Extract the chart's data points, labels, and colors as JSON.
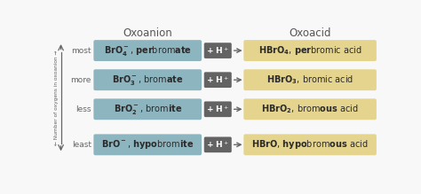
{
  "title_left": "Oxoanion",
  "title_right": "Oxoacid",
  "row_labels": [
    "most",
    "more",
    "less",
    "least"
  ],
  "anion_texts": [
    "BrO₄⁻, ⁠perbromate",
    "BrO₃⁻, bromate",
    "BrO₂⁻, bromite",
    "BrO⁻, hypobromite"
  ],
  "acid_texts": [
    "HBrO₄, perbromic acid",
    "HBrO₃, bromic acid",
    "HBrO₂, bromous acid",
    "HBrO, hypobromous acid"
  ],
  "anion_box_color": "#8db5bf",
  "acid_box_color": "#e5d48e",
  "hplus_box_color": "#636363",
  "bg_color": "#f8f8f8",
  "label_color": "#666666",
  "anion_text_color": "#2a2a2a",
  "acid_text_color": "#2a2a2a",
  "hplus_text_color": "#ffffff",
  "arrow_color": "#666666",
  "title_color": "#555555",
  "axis_text_color": "#666666"
}
